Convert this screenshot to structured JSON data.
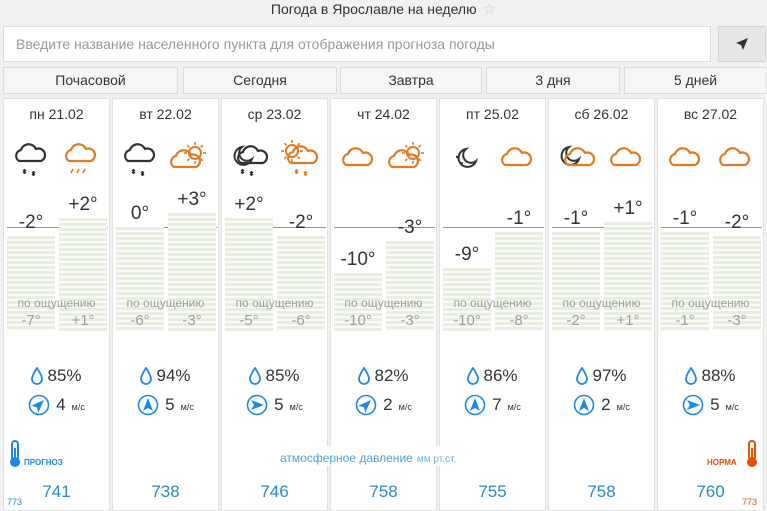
{
  "page_title": "Погода в Ярославле на неделю",
  "search": {
    "placeholder": "Введите название населенного пункта для отображения прогноза погоды"
  },
  "tabs": [
    "Почасовой",
    "Сегодня",
    "Завтра",
    "3 дня",
    "5 дней"
  ],
  "feels_label": "по ощущению",
  "wind_unit": "м/с",
  "pressure_caption": "атмосферное давление",
  "pressure_unit": "мм рт.ст.",
  "legend": {
    "forecast": "ПРОГНОЗ",
    "norm": "НОРМА",
    "scale_left": "773",
    "scale_right": "773"
  },
  "colors": {
    "accent": "#2a8ac6",
    "weather_icon": "#e07b24",
    "zero_line": "#e57373"
  },
  "days": [
    {
      "label": "пн 21.02",
      "icons": [
        "cloud-snow-icon",
        "cloud-rain-icon"
      ],
      "t_night": "-2°",
      "t_day": "+2°",
      "feels_night": "-7°",
      "feels_day": "+1°",
      "humidity": "85%",
      "wind_speed": "4",
      "wind_dir": "southwest",
      "pressure": "741"
    },
    {
      "label": "вт 22.02",
      "icons": [
        "cloud-snow-icon",
        "sun-cloud-icon"
      ],
      "t_night": "0°",
      "t_day": "+3°",
      "feels_night": "-6°",
      "feels_day": "-3°",
      "humidity": "94%",
      "wind_speed": "5",
      "wind_dir": "south",
      "pressure": "738"
    },
    {
      "label": "ср 23.02",
      "icons": [
        "moon-cloud-snow-icon",
        "sun-cloud-snow-icon"
      ],
      "t_night": "+2°",
      "t_day": "-2°",
      "feels_night": "-5°",
      "feels_day": "-6°",
      "humidity": "85%",
      "wind_speed": "5",
      "wind_dir": "west",
      "pressure": "746"
    },
    {
      "label": "чт 24.02",
      "icons": [
        "cloud-icon",
        "sun-cloud-icon"
      ],
      "t_night": "-10°",
      "t_day": "-3°",
      "feels_night": "-10°",
      "feels_day": "-3°",
      "humidity": "82%",
      "wind_speed": "2",
      "wind_dir": "southwest",
      "pressure": "758"
    },
    {
      "label": "пт 25.02",
      "icons": [
        "moon-icon",
        "cloud-icon"
      ],
      "t_night": "-9°",
      "t_day": "-1°",
      "feels_night": "-10°",
      "feels_day": "-8°",
      "humidity": "86%",
      "wind_speed": "7",
      "wind_dir": "south",
      "pressure": "755"
    },
    {
      "label": "сб 26.02",
      "icons": [
        "moon-cloud-icon",
        "cloud-icon"
      ],
      "t_night": "-1°",
      "t_day": "+1°",
      "feels_night": "-2°",
      "feels_day": "+1°",
      "humidity": "97%",
      "wind_speed": "2",
      "wind_dir": "south",
      "pressure": "758"
    },
    {
      "label": "вс 27.02",
      "icons": [
        "cloud-icon",
        "cloud-icon"
      ],
      "t_night": "-1°",
      "t_day": "-2°",
      "feels_night": "-1°",
      "feels_day": "-3°",
      "humidity": "88%",
      "wind_speed": "5",
      "wind_dir": "west",
      "pressure": "760"
    }
  ]
}
